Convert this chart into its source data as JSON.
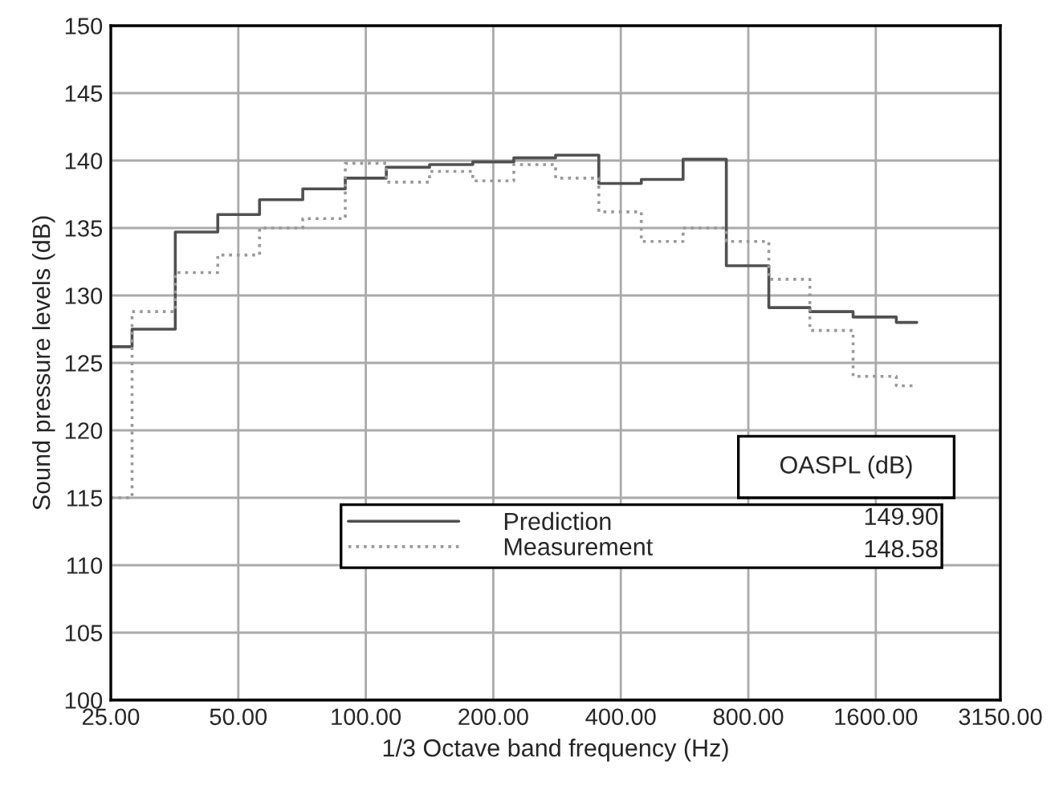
{
  "chart_data": {
    "type": "step",
    "xlabel": "1/3 Octave band frequency (Hz)",
    "ylabel": "Sound pressure levels (dB)",
    "x": [
      25,
      31.5,
      40,
      50,
      63,
      80,
      100,
      125,
      160,
      200,
      250,
      315,
      400,
      500,
      630,
      800,
      1000,
      1250,
      1600,
      2000
    ],
    "series": [
      {
        "name": "Prediction",
        "color": "#505050",
        "line_style": "solid",
        "values": [
          126.2,
          127.5,
          134.7,
          136.0,
          137.1,
          137.9,
          138.7,
          139.5,
          139.7,
          139.9,
          140.2,
          140.4,
          138.3,
          138.6,
          140.1,
          132.2,
          129.1,
          128.8,
          128.4,
          128.0
        ]
      },
      {
        "name": "Measurement",
        "color": "#999999",
        "line_style": "dotted",
        "values": [
          115.0,
          128.8,
          131.7,
          133.0,
          135.0,
          135.7,
          139.8,
          138.4,
          139.2,
          138.5,
          139.7,
          138.7,
          136.2,
          134.0,
          135.0,
          134.0,
          131.2,
          127.4,
          124.0,
          123.3
        ]
      }
    ],
    "log": "x",
    "xlim": [
      25,
      3150
    ],
    "xticks": [
      {
        "value": 25,
        "label": "25.00"
      },
      {
        "value": 50,
        "label": "50.00"
      },
      {
        "value": 100,
        "label": "100.00"
      },
      {
        "value": 200,
        "label": "200.00"
      },
      {
        "value": 400,
        "label": "400.00"
      },
      {
        "value": 800,
        "label": "800.00"
      },
      {
        "value": 1600,
        "label": "1600.00"
      },
      {
        "value": 3150,
        "label": "3150.00"
      }
    ],
    "ylim": [
      100,
      150
    ],
    "yticks": [
      100,
      105,
      110,
      115,
      120,
      125,
      130,
      135,
      140,
      145,
      150
    ],
    "grid": true,
    "legend": "bottom",
    "annotations": [
      "OASPL (dB)",
      "149.90",
      "148.58"
    ]
  }
}
